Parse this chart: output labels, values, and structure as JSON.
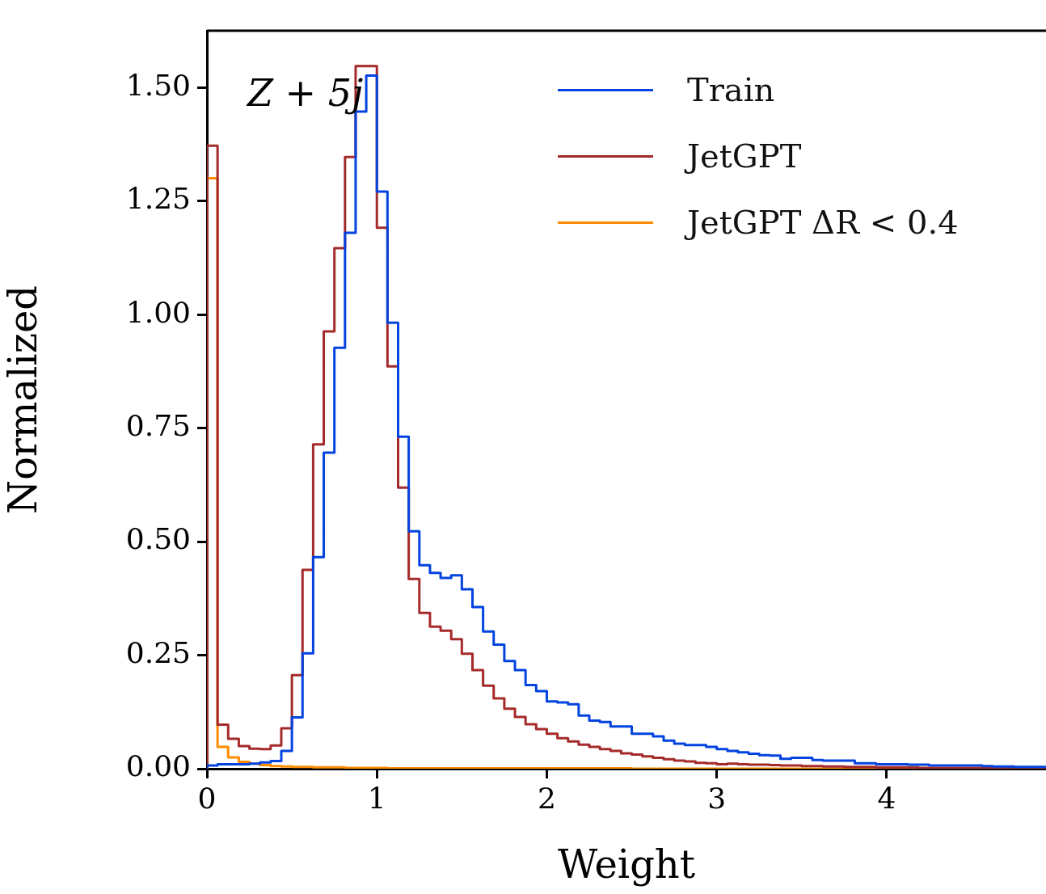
{
  "chart_data": {
    "type": "histogram",
    "xlabel": "Weight",
    "ylabel": "Normalized",
    "annotations": [
      "Z + 5j"
    ],
    "bins": [
      0,
      0.0625,
      0.125,
      0.1875,
      0.25,
      0.3125,
      0.375,
      0.4375,
      0.5,
      0.5625,
      0.625,
      0.6875,
      0.75,
      0.8125,
      0.875,
      0.9375,
      1,
      1.0625,
      1.125,
      1.1875,
      1.25,
      1.3125,
      1.375,
      1.4375,
      1.5,
      1.5625,
      1.625,
      1.6875,
      1.75,
      1.8125,
      1.875,
      1.9375,
      2,
      2.0625,
      2.125,
      2.1875,
      2.25,
      2.3125,
      2.375,
      2.4375,
      2.5,
      2.5625,
      2.625,
      2.6875,
      2.75,
      2.8125,
      2.875,
      2.9375,
      3,
      3.0625,
      3.125,
      3.1875,
      3.25,
      3.3125,
      3.375,
      3.4375,
      3.5,
      3.5625,
      3.625,
      3.6875,
      3.75,
      3.8125,
      3.875,
      3.9375,
      4,
      4.0625,
      4.125,
      4.1875,
      4.25,
      4.3125,
      4.375,
      4.4375,
      4.5,
      4.5625,
      4.625,
      4.6875,
      4.75,
      4.8125,
      4.875,
      4.9375
    ],
    "series": [
      {
        "name": "Train",
        "color": "#0343df",
        "values": [
          0.007,
          0.01,
          0.01,
          0.01,
          0.011,
          0.014,
          0.017,
          0.039,
          0.113,
          0.254,
          0.466,
          0.696,
          0.927,
          1.18,
          1.447,
          1.526,
          1.271,
          0.982,
          0.731,
          0.523,
          0.448,
          0.431,
          0.42,
          0.426,
          0.395,
          0.356,
          0.302,
          0.273,
          0.237,
          0.217,
          0.184,
          0.171,
          0.148,
          0.146,
          0.142,
          0.117,
          0.106,
          0.103,
          0.093,
          0.093,
          0.077,
          0.077,
          0.071,
          0.062,
          0.055,
          0.052,
          0.052,
          0.048,
          0.043,
          0.039,
          0.036,
          0.033,
          0.03,
          0.029,
          0.022,
          0.024,
          0.024,
          0.019,
          0.018,
          0.018,
          0.018,
          0.012,
          0.012,
          0.01,
          0.01,
          0.01,
          0.009,
          0.009,
          0.007,
          0.007,
          0.007,
          0.007,
          0.007,
          0.006,
          0.005,
          0.005,
          0.004,
          0.004,
          0.004
        ]
      },
      {
        "name": "JetGPT",
        "color": "#a52a2a",
        "values": [
          1.372,
          0.097,
          0.066,
          0.05,
          0.044,
          0.043,
          0.051,
          0.089,
          0.206,
          0.438,
          0.714,
          0.963,
          1.146,
          1.347,
          1.547,
          1.547,
          1.191,
          0.886,
          0.619,
          0.418,
          0.343,
          0.313,
          0.304,
          0.285,
          0.253,
          0.217,
          0.183,
          0.155,
          0.132,
          0.114,
          0.098,
          0.087,
          0.077,
          0.067,
          0.06,
          0.053,
          0.048,
          0.043,
          0.039,
          0.034,
          0.031,
          0.027,
          0.024,
          0.021,
          0.018,
          0.016,
          0.013,
          0.012,
          0.01,
          0.011,
          0.01,
          0.009,
          0.009,
          0.008,
          0.007,
          0.007,
          0.006,
          0.006,
          0.005,
          0.005,
          0.004,
          0.004,
          0.004,
          0.003,
          0.003,
          0.003,
          0.003,
          0.002,
          0.002,
          0.002,
          0.002,
          0.002,
          0.002,
          0.001,
          0.001,
          0.001,
          0.001,
          0.001,
          0.001
        ]
      },
      {
        "name": "JetGPT ΔR < 0.4",
        "color": "#ff8c00",
        "values": [
          1.3,
          0.048,
          0.025,
          0.015,
          0.011,
          0.008,
          0.006,
          0.005,
          0.004,
          0.004,
          0.003,
          0.003,
          0.003,
          0.002,
          0.002,
          0.002,
          0.002,
          0.001,
          0.001,
          0.001,
          0.001,
          0.001,
          0.001,
          0.001,
          0.001,
          0.001,
          0.001,
          0.001,
          0.001,
          0.001,
          0.001,
          0.001,
          0.001,
          0.001,
          0.001,
          0.001,
          0.001,
          0.001,
          0.001,
          0.001,
          0,
          0,
          0,
          0,
          0,
          0,
          0,
          0,
          0,
          0,
          0,
          0,
          0,
          0,
          0,
          0,
          0,
          0,
          0,
          0,
          0,
          0,
          0,
          0,
          0,
          0,
          0,
          0,
          0,
          0,
          0,
          0,
          0,
          0,
          0,
          0,
          0,
          0,
          0
        ]
      }
    ],
    "xlim": [
      0,
      4.9375
    ],
    "ylim": [
      0,
      1.625
    ],
    "xticks": [
      0,
      1,
      2,
      3,
      4
    ],
    "yticks": [
      {
        "value": 0,
        "label": "0.00"
      },
      {
        "value": 0.25,
        "label": "0.25"
      },
      {
        "value": 0.5,
        "label": "0.50"
      },
      {
        "value": 0.75,
        "label": "0.75"
      },
      {
        "value": 1,
        "label": "1.00"
      },
      {
        "value": 1.25,
        "label": "1.25"
      },
      {
        "value": 1.5,
        "label": "1.50"
      }
    ],
    "grid": false,
    "legend": "top right"
  }
}
